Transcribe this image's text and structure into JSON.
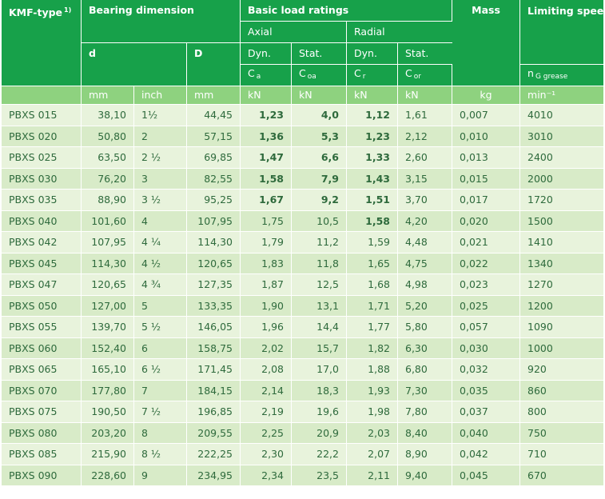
{
  "header": {
    "type_label": "KMF-type",
    "type_note": "1)",
    "bearing_dimension": "Bearing dimension",
    "basic_load_ratings": "Basic load ratings",
    "mass": "Mass",
    "limiting_speeds": "Limiting speeds",
    "axial": "Axial",
    "radial": "Radial",
    "d": "d",
    "D": "D",
    "dyn": "Dyn.",
    "stat": "Stat.",
    "ca_base": "C",
    "ca_sub": "a",
    "coa_base": "C",
    "coa_sub": "oa",
    "cr_base": "C",
    "cr_sub": "r",
    "cor_base": "C",
    "cor_sub": "or",
    "ng_base": "n",
    "ng_sub": "G grease"
  },
  "units": {
    "d_mm": "mm",
    "d_inch": "inch",
    "D_mm": "mm",
    "ca": "kN",
    "coa": "kN",
    "cr": "kN",
    "cor": "kN",
    "mass": "kg",
    "speed": "min⁻¹"
  },
  "rows": [
    {
      "type": "PBXS  015",
      "d_mm": "38,10",
      "d_inch": "1½",
      "D_mm": "44,45",
      "ca": "1,23",
      "coa": "4,0",
      "cr": "1,12",
      "cor": "1,61",
      "mass": "0,007",
      "speed": "4010"
    },
    {
      "type": "PBXS  020",
      "d_mm": "50,80",
      "d_inch": "2",
      "D_mm": "57,15",
      "ca": "1,36",
      "coa": "5,3",
      "cr": "1,23",
      "cor": "2,12",
      "mass": "0,010",
      "speed": "3010"
    },
    {
      "type": "PBXS  025",
      "d_mm": "63,50",
      "d_inch": "2 ½",
      "D_mm": "69,85",
      "ca": "1,47",
      "coa": "6,6",
      "cr": "1,33",
      "cor": "2,60",
      "mass": "0,013",
      "speed": "2400"
    },
    {
      "type": "PBXS  030",
      "d_mm": "76,20",
      "d_inch": "3",
      "D_mm": "82,55",
      "ca": "1,58",
      "coa": "7,9",
      "cr": "1,43",
      "cor": "3,15",
      "mass": "0,015",
      "speed": "2000"
    },
    {
      "type": "PBXS  035",
      "d_mm": "88,90",
      "d_inch": "3 ½",
      "D_mm": "95,25",
      "ca": "1,67",
      "coa": "9,2",
      "cr": "1,51",
      "cor": "3,70",
      "mass": "0,017",
      "speed": "1720"
    },
    {
      "type": "PBXS  040",
      "d_mm": "101,60",
      "d_inch": "4",
      "D_mm": "107,95",
      "ca": "1,75",
      "coa": "10,5",
      "cr": "1,58",
      "cor": "4,20",
      "mass": "0,020",
      "speed": "1500"
    },
    {
      "type": "PBXS  042",
      "d_mm": "107,95",
      "d_inch": "4 ¼",
      "D_mm": "114,30",
      "ca": "1,79",
      "coa": "11,2",
      "cr": "1,59",
      "cor": "4,48",
      "mass": "0,021",
      "speed": "1410"
    },
    {
      "type": "PBXS  045",
      "d_mm": "114,30",
      "d_inch": "4 ½",
      "D_mm": "120,65",
      "ca": "1,83",
      "coa": "11,8",
      "cr": "1,65",
      "cor": "4,75",
      "mass": "0,022",
      "speed": "1340"
    },
    {
      "type": "PBXS  047",
      "d_mm": "120,65",
      "d_inch": "4 ¾",
      "D_mm": "127,35",
      "ca": "1,87",
      "coa": "12,5",
      "cr": "1,68",
      "cor": "4,98",
      "mass": "0,023",
      "speed": "1270"
    },
    {
      "type": "PBXS  050",
      "d_mm": "127,00",
      "d_inch": "5",
      "D_mm": "133,35",
      "ca": "1,90",
      "coa": "13,1",
      "cr": "1,71",
      "cor": "5,20",
      "mass": "0,025",
      "speed": "1200"
    },
    {
      "type": "PBXS  055",
      "d_mm": "139,70",
      "d_inch": "5 ½",
      "D_mm": "146,05",
      "ca": "1,96",
      "coa": "14,4",
      "cr": "1,77",
      "cor": "5,80",
      "mass": "0,057",
      "speed": "1090"
    },
    {
      "type": "PBXS  060",
      "d_mm": "152,40",
      "d_inch": "6",
      "D_mm": "158,75",
      "ca": "2,02",
      "coa": "15,7",
      "cr": "1,82",
      "cor": "6,30",
      "mass": "0,030",
      "speed": "1000"
    },
    {
      "type": "PBXS  065",
      "d_mm": "165,10",
      "d_inch": "6 ½",
      "D_mm": "171,45",
      "ca": "2,08",
      "coa": "17,0",
      "cr": "1,88",
      "cor": "6,80",
      "mass": "0,032",
      "speed": "920"
    },
    {
      "type": "PBXS  070",
      "d_mm": "177,80",
      "d_inch": "7",
      "D_mm": "184,15",
      "ca": "2,14",
      "coa": "18,3",
      "cr": "1,93",
      "cor": "7,30",
      "mass": "0,035",
      "speed": "860"
    },
    {
      "type": "PBXS  075",
      "d_mm": "190,50",
      "d_inch": "7 ½",
      "D_mm": "196,85",
      "ca": "2,19",
      "coa": "19,6",
      "cr": "1,98",
      "cor": "7,80",
      "mass": "0,037",
      "speed": "800"
    },
    {
      "type": "PBXS  080",
      "d_mm": "203,20",
      "d_inch": "8",
      "D_mm": "209,55",
      "ca": "2,25",
      "coa": "20,9",
      "cr": "2,03",
      "cor": "8,40",
      "mass": "0,040",
      "speed": "750"
    },
    {
      "type": "PBXS  085",
      "d_mm": "215,90",
      "d_inch": "8 ½",
      "D_mm": "222,25",
      "ca": "2,30",
      "coa": "22,2",
      "cr": "2,07",
      "cor": "8,90",
      "mass": "0,042",
      "speed": "710"
    },
    {
      "type": "PBXS  090",
      "d_mm": "228,60",
      "d_inch": "9",
      "D_mm": "234,95",
      "ca": "2,34",
      "coa": "23,5",
      "cr": "2,11",
      "cor": "9,40",
      "mass": "0,045",
      "speed": "670"
    }
  ]
}
